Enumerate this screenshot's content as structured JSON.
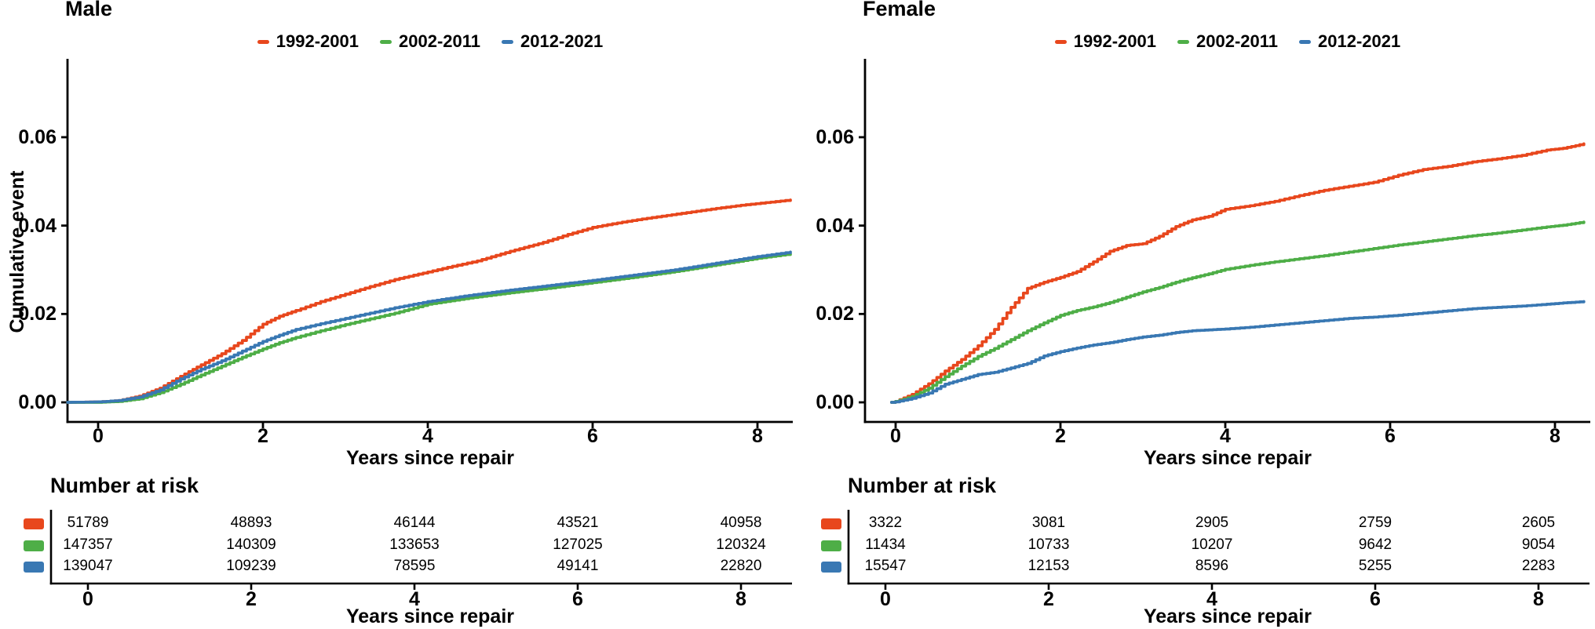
{
  "figure": {
    "background": "#ffffff"
  },
  "chart_data": [
    {
      "type": "line",
      "title": "Male",
      "xlabel": "Years since repair",
      "ylabel": "Cumulative event",
      "x_ticks": [
        "0",
        "2",
        "4",
        "6",
        "8"
      ],
      "y_ticks": [
        "0.00",
        "0.02",
        "0.04",
        "0.06"
      ],
      "x_tick_vals": [
        0,
        2,
        4,
        6,
        8
      ],
      "y_tick_vals": [
        0,
        0.02,
        0.04,
        0.06
      ],
      "xlim": [
        -0.4,
        8.5
      ],
      "ylim": [
        0,
        0.072
      ],
      "legend_position": "top",
      "grid": "off",
      "series": [
        {
          "name": "1992-2001",
          "color": "#E8471D",
          "points": [
            [
              -0.37,
              0
            ],
            [
              0,
              0.0001
            ],
            [
              0.25,
              0.0004
            ],
            [
              0.5,
              0.0014
            ],
            [
              0.75,
              0.0032
            ],
            [
              1,
              0.0059
            ],
            [
              1.25,
              0.0085
            ],
            [
              1.5,
              0.011
            ],
            [
              1.75,
              0.014
            ],
            [
              2,
              0.0177
            ],
            [
              2.2,
              0.0195
            ],
            [
              2.4,
              0.0208
            ],
            [
              2.7,
              0.0228
            ],
            [
              3,
              0.0245
            ],
            [
              3.3,
              0.0262
            ],
            [
              3.6,
              0.0278
            ],
            [
              4,
              0.0295
            ],
            [
              4.3,
              0.0308
            ],
            [
              4.6,
              0.032
            ],
            [
              5,
              0.0342
            ],
            [
              5.4,
              0.0362
            ],
            [
              5.7,
              0.038
            ],
            [
              6,
              0.0396
            ],
            [
              6.3,
              0.0406
            ],
            [
              6.6,
              0.0415
            ],
            [
              6.9,
              0.0423
            ],
            [
              7.2,
              0.0431
            ],
            [
              7.5,
              0.0439
            ],
            [
              7.8,
              0.0446
            ],
            [
              8.1,
              0.0452
            ],
            [
              8.4,
              0.0458
            ]
          ]
        },
        {
          "name": "2002-2011",
          "color": "#4EAE47",
          "points": [
            [
              -0.37,
              0
            ],
            [
              0,
              0
            ],
            [
              0.25,
              0.0002
            ],
            [
              0.5,
              0.0008
            ],
            [
              0.75,
              0.0022
            ],
            [
              1,
              0.0041
            ],
            [
              1.25,
              0.0062
            ],
            [
              1.5,
              0.0082
            ],
            [
              1.75,
              0.0102
            ],
            [
              2,
              0.0121
            ],
            [
              2.2,
              0.0135
            ],
            [
              2.4,
              0.0147
            ],
            [
              2.7,
              0.0162
            ],
            [
              3,
              0.0176
            ],
            [
              3.3,
              0.0189
            ],
            [
              3.6,
              0.0202
            ],
            [
              4,
              0.0222
            ],
            [
              4.5,
              0.0236
            ],
            [
              5,
              0.0248
            ],
            [
              5.5,
              0.0259
            ],
            [
              6,
              0.0271
            ],
            [
              6.5,
              0.0283
            ],
            [
              7,
              0.0296
            ],
            [
              7.5,
              0.0311
            ],
            [
              8,
              0.0326
            ],
            [
              8.4,
              0.0336
            ]
          ]
        },
        {
          "name": "2012-2021",
          "color": "#3978B3",
          "points": [
            [
              -0.37,
              0
            ],
            [
              0,
              0.0001
            ],
            [
              0.25,
              0.0004
            ],
            [
              0.5,
              0.0012
            ],
            [
              0.75,
              0.0028
            ],
            [
              1,
              0.0053
            ],
            [
              1.25,
              0.0075
            ],
            [
              1.5,
              0.0094
            ],
            [
              1.75,
              0.0116
            ],
            [
              2,
              0.0138
            ],
            [
              2.2,
              0.0152
            ],
            [
              2.4,
              0.0165
            ],
            [
              2.7,
              0.0178
            ],
            [
              3,
              0.019
            ],
            [
              3.3,
              0.0202
            ],
            [
              3.6,
              0.0214
            ],
            [
              4,
              0.0228
            ],
            [
              4.5,
              0.0242
            ],
            [
              5,
              0.0254
            ],
            [
              5.5,
              0.0265
            ],
            [
              6,
              0.0276
            ],
            [
              6.5,
              0.0288
            ],
            [
              7,
              0.03
            ],
            [
              7.5,
              0.0315
            ],
            [
              8,
              0.033
            ],
            [
              8.4,
              0.034
            ]
          ]
        }
      ],
      "risk_table": {
        "heading": "Number at risk",
        "xlabel": "Years since repair",
        "x_ticks": [
          "0",
          "2",
          "4",
          "6",
          "8"
        ],
        "rows": [
          {
            "name": "1992-2001",
            "color": "#E8471D",
            "values": [
              "51789",
              "48893",
              "46144",
              "43521",
              "40958"
            ]
          },
          {
            "name": "2002-2011",
            "color": "#4EAE47",
            "values": [
              "147357",
              "140309",
              "133653",
              "127025",
              "120324"
            ]
          },
          {
            "name": "2012-2021",
            "color": "#3978B3",
            "values": [
              "139047",
              "109239",
              "78595",
              "49141",
              "22820"
            ]
          }
        ]
      }
    },
    {
      "type": "line",
      "title": "Female",
      "xlabel": "Years since repair",
      "ylabel": "",
      "x_ticks": [
        "0",
        "2",
        "4",
        "6",
        "8"
      ],
      "y_ticks": [
        "0.00",
        "0.02",
        "0.04",
        "0.06"
      ],
      "x_tick_vals": [
        0,
        2,
        4,
        6,
        8
      ],
      "y_tick_vals": [
        0,
        0.02,
        0.04,
        0.06
      ],
      "xlim": [
        -0.4,
        8.5
      ],
      "ylim": [
        0,
        0.072
      ],
      "legend_position": "top",
      "grid": "off",
      "series": [
        {
          "name": "1992-2001",
          "color": "#E8471D",
          "points": [
            [
              -0.05,
              0
            ],
            [
              0,
              0.0002
            ],
            [
              0.2,
              0.0018
            ],
            [
              0.4,
              0.0042
            ],
            [
              0.6,
              0.0071
            ],
            [
              0.8,
              0.0097
            ],
            [
              1,
              0.0128
            ],
            [
              1.2,
              0.0165
            ],
            [
              1.4,
              0.0215
            ],
            [
              1.6,
              0.0258
            ],
            [
              1.8,
              0.0272
            ],
            [
              2,
              0.0283
            ],
            [
              2.2,
              0.0296
            ],
            [
              2.4,
              0.0318
            ],
            [
              2.6,
              0.0342
            ],
            [
              2.8,
              0.0355
            ],
            [
              3,
              0.0359
            ],
            [
              3.2,
              0.0376
            ],
            [
              3.4,
              0.0398
            ],
            [
              3.6,
              0.0413
            ],
            [
              3.8,
              0.0421
            ],
            [
              4,
              0.0437
            ],
            [
              4.3,
              0.0445
            ],
            [
              4.6,
              0.0455
            ],
            [
              4.9,
              0.0468
            ],
            [
              5.2,
              0.048
            ],
            [
              5.5,
              0.0489
            ],
            [
              5.8,
              0.0498
            ],
            [
              6.1,
              0.0514
            ],
            [
              6.4,
              0.0527
            ],
            [
              6.7,
              0.0534
            ],
            [
              7,
              0.0544
            ],
            [
              7.3,
              0.0551
            ],
            [
              7.6,
              0.0559
            ],
            [
              7.9,
              0.0571
            ],
            [
              8.1,
              0.0575
            ],
            [
              8.35,
              0.0585
            ]
          ]
        },
        {
          "name": "2002-2011",
          "color": "#4EAE47",
          "points": [
            [
              -0.05,
              0
            ],
            [
              0,
              0.0002
            ],
            [
              0.2,
              0.0013
            ],
            [
              0.4,
              0.0032
            ],
            [
              0.6,
              0.0058
            ],
            [
              0.8,
              0.0082
            ],
            [
              1,
              0.0104
            ],
            [
              1.2,
              0.0122
            ],
            [
              1.4,
              0.0142
            ],
            [
              1.6,
              0.0162
            ],
            [
              1.8,
              0.018
            ],
            [
              2,
              0.0197
            ],
            [
              2.2,
              0.0208
            ],
            [
              2.4,
              0.0216
            ],
            [
              2.6,
              0.0226
            ],
            [
              2.8,
              0.0238
            ],
            [
              3,
              0.025
            ],
            [
              3.2,
              0.026
            ],
            [
              3.4,
              0.0272
            ],
            [
              3.6,
              0.0282
            ],
            [
              3.8,
              0.0291
            ],
            [
              4,
              0.0301
            ],
            [
              4.3,
              0.031
            ],
            [
              4.6,
              0.0318
            ],
            [
              4.9,
              0.0325
            ],
            [
              5.2,
              0.0332
            ],
            [
              5.5,
              0.034
            ],
            [
              5.8,
              0.0348
            ],
            [
              6.1,
              0.0356
            ],
            [
              6.4,
              0.0363
            ],
            [
              6.7,
              0.037
            ],
            [
              7,
              0.0377
            ],
            [
              7.3,
              0.0383
            ],
            [
              7.6,
              0.039
            ],
            [
              7.9,
              0.0397
            ],
            [
              8.1,
              0.0401
            ],
            [
              8.35,
              0.0408
            ]
          ]
        },
        {
          "name": "2012-2021",
          "color": "#3978B3",
          "points": [
            [
              -0.05,
              0
            ],
            [
              0,
              0.0001
            ],
            [
              0.2,
              0.0009
            ],
            [
              0.4,
              0.0021
            ],
            [
              0.6,
              0.0041
            ],
            [
              0.8,
              0.0052
            ],
            [
              1,
              0.0063
            ],
            [
              1.2,
              0.0068
            ],
            [
              1.4,
              0.0078
            ],
            [
              1.6,
              0.0088
            ],
            [
              1.8,
              0.0105
            ],
            [
              2,
              0.0115
            ],
            [
              2.2,
              0.0123
            ],
            [
              2.4,
              0.013
            ],
            [
              2.6,
              0.0135
            ],
            [
              2.8,
              0.0142
            ],
            [
              3,
              0.0148
            ],
            [
              3.2,
              0.0152
            ],
            [
              3.4,
              0.0158
            ],
            [
              3.6,
              0.0162
            ],
            [
              3.8,
              0.0164
            ],
            [
              4,
              0.0166
            ],
            [
              4.3,
              0.017
            ],
            [
              4.6,
              0.0175
            ],
            [
              4.9,
              0.018
            ],
            [
              5.2,
              0.0185
            ],
            [
              5.5,
              0.019
            ],
            [
              5.8,
              0.0193
            ],
            [
              6.1,
              0.0197
            ],
            [
              6.4,
              0.0202
            ],
            [
              6.7,
              0.0207
            ],
            [
              7,
              0.0212
            ],
            [
              7.3,
              0.0215
            ],
            [
              7.6,
              0.0218
            ],
            [
              7.9,
              0.0222
            ],
            [
              8.1,
              0.0225
            ],
            [
              8.35,
              0.0228
            ]
          ]
        }
      ],
      "risk_table": {
        "heading": "Number at risk",
        "xlabel": "Years since repair",
        "x_ticks": [
          "0",
          "2",
          "4",
          "6",
          "8"
        ],
        "rows": [
          {
            "name": "1992-2001",
            "color": "#E8471D",
            "values": [
              "3322",
              "3081",
              "2905",
              "2759",
              "2605"
            ]
          },
          {
            "name": "2002-2011",
            "color": "#4EAE47",
            "values": [
              "11434",
              "10733",
              "10207",
              "9642",
              "9054"
            ]
          },
          {
            "name": "2012-2021",
            "color": "#3978B3",
            "values": [
              "15547",
              "12153",
              "8596",
              "5255",
              "2283"
            ]
          }
        ]
      }
    }
  ]
}
